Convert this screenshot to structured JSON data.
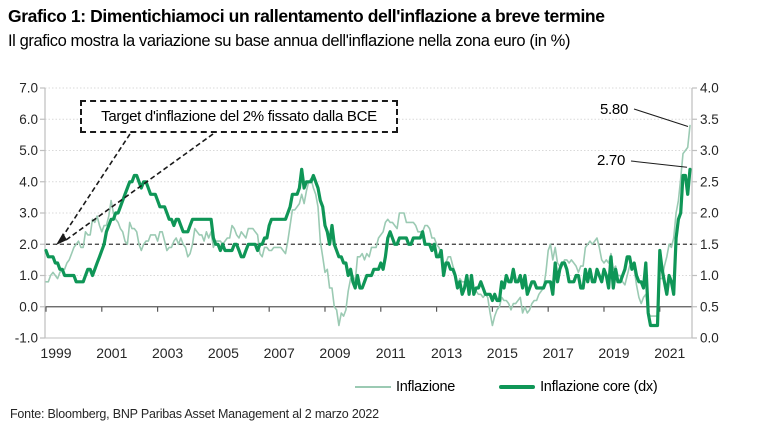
{
  "header": {
    "title": "Grafico 1: Dimentichiamoci un rallentamento dell'inflazione a breve termine",
    "subtitle": "Il grafico mostra la variazione su base annua dell'inflazione nella zona euro (in %)"
  },
  "annotation": {
    "text": "Target d'inflazione del 2% fissato dalla BCE"
  },
  "callout_labels": {
    "headline_last": "5.80",
    "core_last": "2.70"
  },
  "footer": {
    "source": "Fonte: Bloomberg, BNP Paribas Asset Management al 2 marzo 2022"
  },
  "chart_data": {
    "type": "line",
    "title": "Grafico 1: Dimentichiamoci un rallentamento dell'inflazione a breve termine",
    "subtitle": "Il grafico mostra la variazione su base annua dell'inflazione nella zona euro (in %)",
    "x_start": "1999-01",
    "x_end": "2022-02",
    "x_frequency": "monthly",
    "x_tick_labels": [
      "1999",
      "2001",
      "2003",
      "2005",
      "2007",
      "2009",
      "2011",
      "2013",
      "2015",
      "2017",
      "2019",
      "2021"
    ],
    "left_axis": {
      "min": -1.0,
      "max": 7.0,
      "tick_values": [
        7.0,
        6.0,
        5.0,
        4.0,
        3.0,
        2.0,
        1.0,
        0.0,
        -1.0
      ],
      "tick_labels": [
        "7.0",
        "6.0",
        "5.0",
        "4.0",
        "3.0",
        "2.0",
        "1.0",
        "0.0",
        "-1.0"
      ]
    },
    "right_axis": {
      "min": 0.0,
      "max": 4.0,
      "tick_values": [
        4.0,
        3.5,
        3.0,
        2.5,
        2.0,
        1.5,
        1.0,
        0.5,
        0.0
      ],
      "tick_labels": [
        "4.0",
        "3.5",
        "3.0",
        "2.5",
        "2.0",
        "1.5",
        "1.0",
        "0.5",
        "0.0"
      ]
    },
    "target_line": {
      "value_left_axis": 2.0,
      "annotation": "Target d'inflazione del 2% fissato dalla BCE"
    },
    "legend_position": "bottom",
    "grid": true,
    "colors": {
      "headline": "#9bcab3",
      "core": "#0f9657",
      "grid": "#d9d9d9",
      "axis": "#bfbfbf",
      "zero_line": "#595959",
      "target": "#3a3a3a",
      "text": "#262626"
    },
    "series": [
      {
        "name": "Inflazione",
        "axis": "left",
        "color_key": "headline",
        "width": 1.6,
        "last_value_label": "5.80",
        "values": [
          0.8,
          0.8,
          1.0,
          1.1,
          1.0,
          0.9,
          1.1,
          1.2,
          1.2,
          1.4,
          1.5,
          1.7,
          1.9,
          2.0,
          2.1,
          1.9,
          1.9,
          2.4,
          2.3,
          2.3,
          2.8,
          2.7,
          2.9,
          2.6,
          2.4,
          2.6,
          2.6,
          2.9,
          3.4,
          3.0,
          2.8,
          2.7,
          2.5,
          2.4,
          2.1,
          2.0,
          2.7,
          2.5,
          2.5,
          2.4,
          2.0,
          1.8,
          2.0,
          2.1,
          2.1,
          2.3,
          2.3,
          2.3,
          2.1,
          2.4,
          2.4,
          2.1,
          1.8,
          1.9,
          1.9,
          2.1,
          2.2,
          2.0,
          2.2,
          2.0,
          1.9,
          1.6,
          1.7,
          2.0,
          2.5,
          2.4,
          2.3,
          2.3,
          2.1,
          2.4,
          2.2,
          2.4,
          1.9,
          2.1,
          2.1,
          2.1,
          2.0,
          2.1,
          2.2,
          2.2,
          2.6,
          2.5,
          2.3,
          2.2,
          2.4,
          2.3,
          2.2,
          2.5,
          2.5,
          2.5,
          2.4,
          2.3,
          1.7,
          1.6,
          1.9,
          1.9,
          1.8,
          1.8,
          1.9,
          1.9,
          1.9,
          1.9,
          1.8,
          1.7,
          2.1,
          2.6,
          3.1,
          3.1,
          3.2,
          3.3,
          3.6,
          3.3,
          3.7,
          4.0,
          4.1,
          3.8,
          3.6,
          3.2,
          2.1,
          1.6,
          1.1,
          1.2,
          0.6,
          0.6,
          0.0,
          -0.1,
          -0.6,
          -0.2,
          -0.3,
          -0.1,
          0.5,
          0.9,
          1.0,
          0.8,
          1.6,
          1.6,
          1.7,
          1.5,
          1.7,
          1.6,
          1.9,
          1.9,
          1.9,
          2.2,
          2.3,
          2.4,
          2.7,
          2.8,
          2.7,
          2.7,
          2.6,
          2.5,
          3.0,
          3.0,
          3.0,
          2.7,
          2.7,
          2.7,
          2.7,
          2.6,
          2.4,
          2.4,
          2.4,
          2.6,
          2.6,
          2.5,
          2.2,
          2.2,
          2.0,
          1.9,
          1.7,
          1.2,
          1.4,
          1.6,
          1.6,
          1.3,
          1.1,
          0.7,
          0.9,
          0.8,
          0.8,
          0.7,
          0.5,
          0.7,
          0.5,
          0.5,
          0.4,
          0.4,
          0.3,
          0.4,
          0.3,
          -0.2,
          -0.6,
          -0.3,
          -0.1,
          0.0,
          0.3,
          0.2,
          0.2,
          0.1,
          -0.1,
          0.1,
          0.1,
          0.2,
          0.3,
          -0.2,
          0.0,
          -0.2,
          -0.1,
          0.1,
          0.2,
          0.2,
          0.4,
          0.5,
          0.6,
          1.1,
          1.8,
          2.0,
          1.5,
          1.9,
          1.4,
          1.3,
          1.3,
          1.5,
          1.5,
          1.4,
          1.5,
          1.4,
          1.3,
          1.1,
          1.3,
          1.3,
          1.9,
          2.0,
          2.1,
          2.0,
          2.1,
          2.2,
          1.9,
          1.5,
          1.4,
          1.5,
          1.4,
          1.7,
          1.2,
          1.3,
          1.0,
          1.0,
          0.8,
          0.7,
          1.0,
          1.3,
          1.4,
          1.2,
          0.7,
          0.3,
          0.1,
          0.3,
          0.4,
          -0.2,
          -0.3,
          -0.3,
          -0.3,
          -0.3,
          0.9,
          0.9,
          1.3,
          1.6,
          2.0,
          1.9,
          2.2,
          3.0,
          3.4,
          4.1,
          4.9,
          5.0,
          5.1,
          5.8
        ]
      },
      {
        "name": "Inflazione core (dx)",
        "axis": "right",
        "color_key": "core",
        "width": 3.2,
        "last_value_label": "2.70",
        "values": [
          1.4,
          1.3,
          1.3,
          1.3,
          1.2,
          1.2,
          1.1,
          1.1,
          1.0,
          1.0,
          1.0,
          1.0,
          1.0,
          0.9,
          0.9,
          0.9,
          0.9,
          1.0,
          1.1,
          1.1,
          1.0,
          1.1,
          1.2,
          1.3,
          1.4,
          1.5,
          1.7,
          1.8,
          1.9,
          1.9,
          2.0,
          2.0,
          2.1,
          2.2,
          2.3,
          2.4,
          2.5,
          2.5,
          2.6,
          2.6,
          2.5,
          2.4,
          2.5,
          2.5,
          2.4,
          2.3,
          2.3,
          2.3,
          2.2,
          2.1,
          2.1,
          2.1,
          2.0,
          1.9,
          1.9,
          1.8,
          1.9,
          1.9,
          1.8,
          1.7,
          1.7,
          1.7,
          1.8,
          1.9,
          1.9,
          1.9,
          1.9,
          1.9,
          1.9,
          1.9,
          1.9,
          1.9,
          1.6,
          1.5,
          1.5,
          1.4,
          1.5,
          1.4,
          1.4,
          1.4,
          1.4,
          1.5,
          1.5,
          1.4,
          1.3,
          1.3,
          1.4,
          1.5,
          1.5,
          1.5,
          1.5,
          1.4,
          1.5,
          1.5,
          1.6,
          1.6,
          1.8,
          1.9,
          1.9,
          1.9,
          1.9,
          1.9,
          1.9,
          1.9,
          2.0,
          2.1,
          2.3,
          2.3,
          2.3,
          2.4,
          2.7,
          2.4,
          2.5,
          2.5,
          2.5,
          2.6,
          2.5,
          2.4,
          2.2,
          2.1,
          1.8,
          1.7,
          1.5,
          1.8,
          1.5,
          1.4,
          1.3,
          1.3,
          1.2,
          1.2,
          1.0,
          1.1,
          0.9,
          0.8,
          1.0,
          0.8,
          0.8,
          0.9,
          1.0,
          1.0,
          1.0,
          1.1,
          1.1,
          1.1,
          1.2,
          1.1,
          1.3,
          1.6,
          1.7,
          1.6,
          1.5,
          1.5,
          1.6,
          1.6,
          1.6,
          1.6,
          1.5,
          1.5,
          1.6,
          1.6,
          1.6,
          1.6,
          1.7,
          1.5,
          1.5,
          1.5,
          1.4,
          1.5,
          1.3,
          1.3,
          1.4,
          1.0,
          1.2,
          1.2,
          1.1,
          1.1,
          1.0,
          0.8,
          0.9,
          0.7,
          0.8,
          1.0,
          0.7,
          1.0,
          0.7,
          0.8,
          0.8,
          0.9,
          0.8,
          0.7,
          0.7,
          0.7,
          0.6,
          0.7,
          0.6,
          0.6,
          0.9,
          0.8,
          1.0,
          0.9,
          0.9,
          1.1,
          0.9,
          0.9,
          1.0,
          0.8,
          1.0,
          0.7,
          0.8,
          0.9,
          0.9,
          0.8,
          0.8,
          0.8,
          0.8,
          0.9,
          0.9,
          0.9,
          0.7,
          1.2,
          0.9,
          1.1,
          1.2,
          1.2,
          1.1,
          0.9,
          0.9,
          0.9,
          1.0,
          1.0,
          0.8,
          0.8,
          1.1,
          0.9,
          1.1,
          0.9,
          0.9,
          1.1,
          1.0,
          0.9,
          1.1,
          1.0,
          0.8,
          1.3,
          0.8,
          1.1,
          0.9,
          0.9,
          1.0,
          1.1,
          1.3,
          1.3,
          1.1,
          1.2,
          1.0,
          0.9,
          0.9,
          0.8,
          1.2,
          0.4,
          0.2,
          0.2,
          0.2,
          0.2,
          1.4,
          1.1,
          0.9,
          0.7,
          1.0,
          0.9,
          0.7,
          1.6,
          1.9,
          2.0,
          2.6,
          2.6,
          2.3,
          2.7
        ]
      }
    ]
  }
}
